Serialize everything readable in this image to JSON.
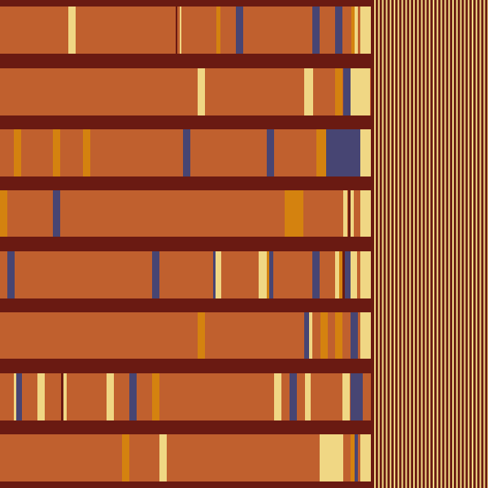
{
  "palette": {
    "background": "#6a1a12",
    "band": "#c0602e",
    "gold": "#d4820f",
    "navy": "#474573",
    "cream": "#f0d784"
  },
  "artwork": {
    "name": "abstract-barcode-stripes",
    "band_count": 8,
    "comb_tooth_count": 30
  }
}
